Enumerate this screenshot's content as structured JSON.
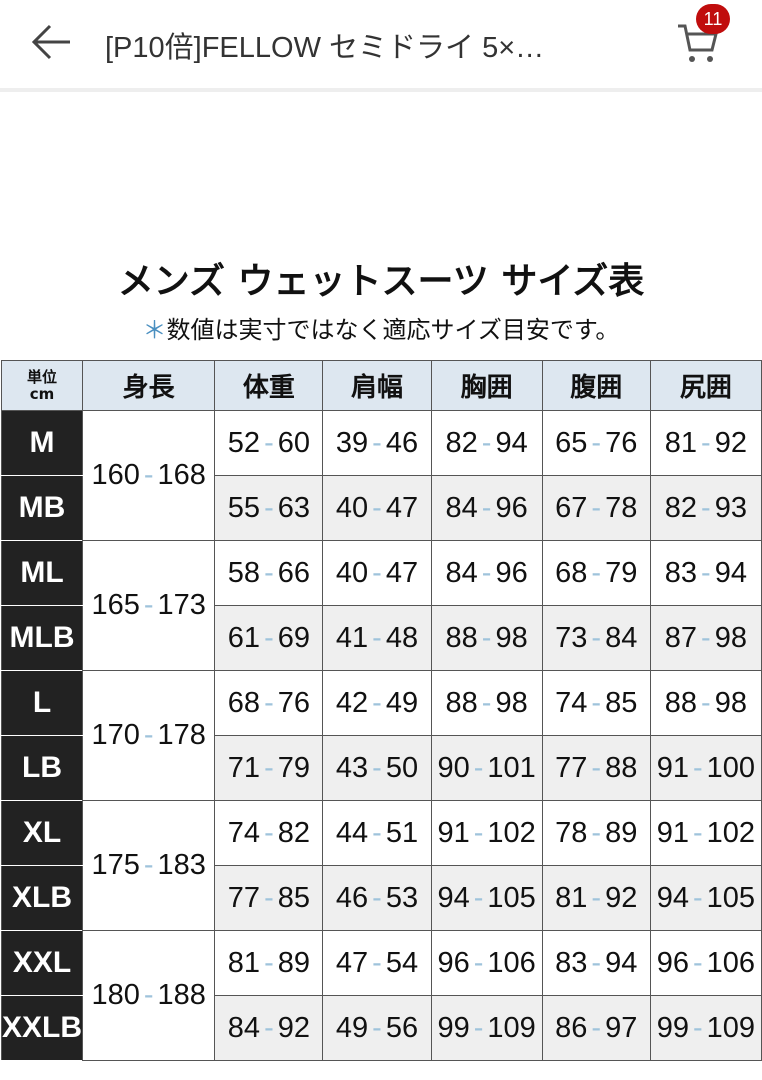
{
  "nav": {
    "title": "[P10倍]FELLOW セミドライ 5×…",
    "cart_count": "11"
  },
  "heading": "メンズ ウェットスーツ サイズ表",
  "note_mark": "＊",
  "note": "数値は実寸ではなく適応サイズ目安です。",
  "colors": {
    "header_bg": "#dde7f0",
    "size_bg": "#222222",
    "dash": "#9fc3db",
    "badge": "#c00d0d"
  },
  "table": {
    "unit_label": [
      "単位",
      "cm"
    ],
    "headers": [
      "身長",
      "体重",
      "肩幅",
      "胸囲",
      "腹囲",
      "尻囲"
    ],
    "groups": [
      {
        "height": [
          "160",
          "168"
        ],
        "rows": [
          {
            "size": "M",
            "vals": [
              [
                "52",
                "60"
              ],
              [
                "39",
                "46"
              ],
              [
                "82",
                "94"
              ],
              [
                "65",
                "76"
              ],
              [
                "81",
                "92"
              ]
            ]
          },
          {
            "size": "MB",
            "vals": [
              [
                "55",
                "63"
              ],
              [
                "40",
                "47"
              ],
              [
                "84",
                "96"
              ],
              [
                "67",
                "78"
              ],
              [
                "82",
                "93"
              ]
            ]
          }
        ]
      },
      {
        "height": [
          "165",
          "173"
        ],
        "rows": [
          {
            "size": "ML",
            "vals": [
              [
                "58",
                "66"
              ],
              [
                "40",
                "47"
              ],
              [
                "84",
                "96"
              ],
              [
                "68",
                "79"
              ],
              [
                "83",
                "94"
              ]
            ]
          },
          {
            "size": "MLB",
            "vals": [
              [
                "61",
                "69"
              ],
              [
                "41",
                "48"
              ],
              [
                "88",
                "98"
              ],
              [
                "73",
                "84"
              ],
              [
                "87",
                "98"
              ]
            ]
          }
        ]
      },
      {
        "height": [
          "170",
          "178"
        ],
        "rows": [
          {
            "size": "L",
            "vals": [
              [
                "68",
                "76"
              ],
              [
                "42",
                "49"
              ],
              [
                "88",
                "98"
              ],
              [
                "74",
                "85"
              ],
              [
                "88",
                "98"
              ]
            ]
          },
          {
            "size": "LB",
            "vals": [
              [
                "71",
                "79"
              ],
              [
                "43",
                "50"
              ],
              [
                "90",
                "101"
              ],
              [
                "77",
                "88"
              ],
              [
                "91",
                "100"
              ]
            ]
          }
        ]
      },
      {
        "height": [
          "175",
          "183"
        ],
        "rows": [
          {
            "size": "XL",
            "vals": [
              [
                "74",
                "82"
              ],
              [
                "44",
                "51"
              ],
              [
                "91",
                "102"
              ],
              [
                "78",
                "89"
              ],
              [
                "91",
                "102"
              ]
            ]
          },
          {
            "size": "XLB",
            "vals": [
              [
                "77",
                "85"
              ],
              [
                "46",
                "53"
              ],
              [
                "94",
                "105"
              ],
              [
                "81",
                "92"
              ],
              [
                "94",
                "105"
              ]
            ]
          }
        ]
      },
      {
        "height": [
          "180",
          "188"
        ],
        "rows": [
          {
            "size": "XXL",
            "vals": [
              [
                "81",
                "89"
              ],
              [
                "47",
                "54"
              ],
              [
                "96",
                "106"
              ],
              [
                "83",
                "94"
              ],
              [
                "96",
                "106"
              ]
            ]
          },
          {
            "size": "XXLB",
            "vals": [
              [
                "84",
                "92"
              ],
              [
                "49",
                "56"
              ],
              [
                "99",
                "109"
              ],
              [
                "86",
                "97"
              ],
              [
                "99",
                "109"
              ]
            ]
          }
        ]
      }
    ]
  }
}
